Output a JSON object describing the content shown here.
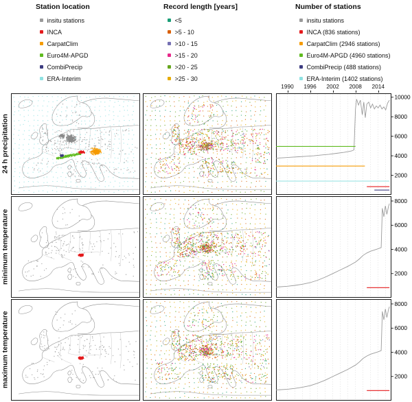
{
  "legends": [
    {
      "title": "Station location",
      "items": [
        {
          "label": "insitu stations",
          "color": "#9a9a9a"
        },
        {
          "label": "INCA",
          "color": "#e41a1c"
        },
        {
          "label": "CarpatClim",
          "color": "#f59b00"
        },
        {
          "label": "Euro4M-APGD",
          "color": "#5fbb1f"
        },
        {
          "label": "CombiPrecip",
          "color": "#3d3c80"
        },
        {
          "label": "ERA-Interim",
          "color": "#8fe2e2"
        }
      ]
    },
    {
      "title": "Record length [years]",
      "items": [
        {
          "label": "<5",
          "color": "#1b9e77"
        },
        {
          "label": ">5 - 10",
          "color": "#d95f02"
        },
        {
          "label": ">10 - 15",
          "color": "#7570b3"
        },
        {
          "label": ">15 - 20",
          "color": "#e7298a"
        },
        {
          "label": ">20 - 25",
          "color": "#66a61e"
        },
        {
          "label": ">25 - 30",
          "color": "#e6ab02"
        }
      ]
    },
    {
      "title": "Number of stations",
      "items": [
        {
          "label": "insitu stations",
          "color": "#9a9a9a"
        },
        {
          "label": "INCA (836 stations)",
          "color": "#e41a1c"
        },
        {
          "label": "CarpatClim (2946 stations)",
          "color": "#f59b00"
        },
        {
          "label": "Euro4M-APGD (4960 stations)",
          "color": "#5fbb1f"
        },
        {
          "label": "CombiPrecip (488 stations)",
          "color": "#3d3c80"
        },
        {
          "label": "ERA-Interim (1402 stations)",
          "color": "#8fe2e2"
        }
      ]
    }
  ],
  "rows": [
    {
      "id": "precipitation",
      "label": "24 h precipitation",
      "map1": "precip_location",
      "map2": "record_length"
    },
    {
      "id": "min-temperature",
      "label": "minimum temperature",
      "map1": "temp_location",
      "map2": "record_length"
    },
    {
      "id": "max-temperature",
      "label": "maximum temperature",
      "map1": "temp_location",
      "map2": "record_length"
    }
  ],
  "colors": {
    "insitu": "#9a9a9a",
    "inca": "#e41a1c",
    "carpatclim": "#f59b00",
    "euro4m": "#5fbb1f",
    "combiprecip": "#3d3c80",
    "era": "#8fe2e2",
    "record": [
      "#1b9e77",
      "#d95f02",
      "#7570b3",
      "#e7298a",
      "#66a61e",
      "#e6ab02"
    ]
  },
  "chart_data": [
    {
      "type": "line",
      "row": "24 h precipitation",
      "xlim": [
        1987,
        2017.5
      ],
      "x_ticks": [
        1990,
        1996,
        2002,
        2008,
        2014
      ],
      "ylim": [
        0,
        10400
      ],
      "y_ticks": [
        2000,
        4000,
        6000,
        8000,
        10000
      ],
      "grid": "vertical-dashed",
      "series": [
        {
          "name": "insitu stations",
          "color": "#9a9a9a",
          "points": [
            [
              1987,
              3750
            ],
            [
              1989,
              3800
            ],
            [
              1991,
              3850
            ],
            [
              1993,
              3900
            ],
            [
              1995,
              3950
            ],
            [
              1997,
              4000
            ],
            [
              1999,
              4080
            ],
            [
              2001,
              4150
            ],
            [
              2003,
              4250
            ],
            [
              2005,
              4350
            ],
            [
              2006,
              4420
            ],
            [
              2007,
              4500
            ],
            [
              2007.6,
              4600
            ],
            [
              2008,
              8800
            ],
            [
              2008.3,
              9800
            ],
            [
              2008.8,
              9200
            ],
            [
              2009.3,
              9700
            ],
            [
              2009.8,
              8200
            ],
            [
              2010.2,
              9500
            ],
            [
              2010.6,
              7900
            ],
            [
              2011,
              9300
            ],
            [
              2011.5,
              9500
            ],
            [
              2012,
              8900
            ],
            [
              2012.5,
              9300
            ],
            [
              2013,
              8800
            ],
            [
              2013.5,
              9100
            ],
            [
              2014,
              8900
            ],
            [
              2014.5,
              9200
            ],
            [
              2015,
              8800
            ],
            [
              2015.5,
              9000
            ],
            [
              2016,
              8700
            ],
            [
              2016.5,
              9400
            ],
            [
              2017,
              9700
            ]
          ]
        },
        {
          "name": "Euro4M-APGD",
          "color": "#5fbb1f",
          "points": [
            [
              1987,
              4960
            ],
            [
              2008,
              4960
            ]
          ]
        },
        {
          "name": "CarpatClim",
          "color": "#f59b00",
          "points": [
            [
              1987,
              2946
            ],
            [
              2010.5,
              2946
            ]
          ]
        },
        {
          "name": "ERA-Interim",
          "color": "#8fe2e2",
          "points": [
            [
              1987,
              1402
            ],
            [
              2017,
              1402
            ]
          ]
        },
        {
          "name": "INCA",
          "color": "#e41a1c",
          "points": [
            [
              2011,
              836
            ],
            [
              2017,
              836
            ]
          ]
        },
        {
          "name": "CombiPrecip",
          "color": "#3d3c80",
          "points": [
            [
              2013,
              488
            ],
            [
              2017,
              488
            ]
          ]
        }
      ]
    },
    {
      "type": "line",
      "row": "minimum temperature",
      "xlim": [
        1987,
        2017.5
      ],
      "x_ticks": [
        1990,
        1996,
        2002,
        2008,
        2014
      ],
      "ylim": [
        0,
        8400
      ],
      "y_ticks": [
        2000,
        4000,
        6000,
        8000
      ],
      "grid": "vertical-dashed",
      "series": [
        {
          "name": "insitu stations",
          "color": "#9a9a9a",
          "points": [
            [
              1987,
              880
            ],
            [
              1990,
              950
            ],
            [
              1992,
              1020
            ],
            [
              1994,
              1120
            ],
            [
              1996,
              1250
            ],
            [
              1998,
              1450
            ],
            [
              2000,
              1700
            ],
            [
              2002,
              2000
            ],
            [
              2004,
              2300
            ],
            [
              2006,
              2600
            ],
            [
              2008,
              2950
            ],
            [
              2009,
              3200
            ],
            [
              2010,
              3500
            ],
            [
              2011,
              3700
            ],
            [
              2012,
              3850
            ],
            [
              2013,
              3950
            ],
            [
              2014,
              4050
            ],
            [
              2014.8,
              4150
            ],
            [
              2015.1,
              7400
            ],
            [
              2015.5,
              6700
            ],
            [
              2015.9,
              7600
            ],
            [
              2016.3,
              6900
            ],
            [
              2016.7,
              7500
            ],
            [
              2017,
              7800
            ]
          ]
        },
        {
          "name": "INCA",
          "color": "#e41a1c",
          "points": [
            [
              2011,
              836
            ],
            [
              2017,
              836
            ]
          ]
        }
      ]
    },
    {
      "type": "line",
      "row": "maximum temperature",
      "xlim": [
        1987,
        2017.5
      ],
      "x_ticks": [
        1990,
        1996,
        2002,
        2008,
        2014
      ],
      "ylim": [
        0,
        8400
      ],
      "y_ticks": [
        2000,
        4000,
        6000,
        8000
      ],
      "grid": "vertical-dashed",
      "series": [
        {
          "name": "insitu stations",
          "color": "#9a9a9a",
          "points": [
            [
              1987,
              880
            ],
            [
              1990,
              940
            ],
            [
              1992,
              1010
            ],
            [
              1994,
              1110
            ],
            [
              1996,
              1240
            ],
            [
              1998,
              1440
            ],
            [
              2000,
              1690
            ],
            [
              2002,
              1990
            ],
            [
              2004,
              2290
            ],
            [
              2006,
              2590
            ],
            [
              2008,
              2940
            ],
            [
              2009,
              3190
            ],
            [
              2010,
              3490
            ],
            [
              2011,
              3690
            ],
            [
              2012,
              3840
            ],
            [
              2013,
              3940
            ],
            [
              2014,
              4040
            ],
            [
              2014.8,
              4140
            ],
            [
              2015.1,
              7380
            ],
            [
              2015.5,
              6680
            ],
            [
              2015.9,
              7580
            ],
            [
              2016.3,
              6880
            ],
            [
              2016.7,
              7480
            ],
            [
              2017,
              7780
            ]
          ]
        },
        {
          "name": "INCA",
          "color": "#e41a1c",
          "points": [
            [
              2011,
              836
            ],
            [
              2017,
              836
            ]
          ]
        }
      ]
    }
  ]
}
